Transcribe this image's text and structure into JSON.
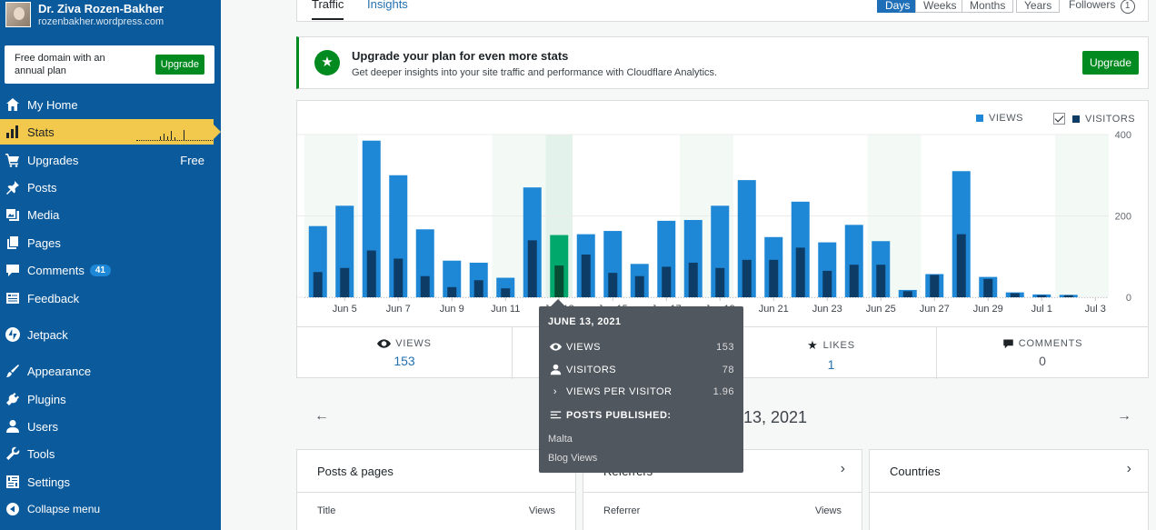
{
  "site": {
    "name": "Dr. Ziva Rozen-Bakher",
    "url": "rozenbakher.wordpress.com"
  },
  "promo": {
    "text": "Free domain with an annual plan",
    "button": "Upgrade"
  },
  "nav": {
    "my_home": "My Home",
    "stats": "Stats",
    "upgrades": "Upgrades",
    "upgrades_badge": "Free",
    "posts": "Posts",
    "media": "Media",
    "pages": "Pages",
    "comments": "Comments",
    "comments_count": "41",
    "feedback": "Feedback",
    "jetpack": "Jetpack",
    "appearance": "Appearance",
    "plugins": "Plugins",
    "users": "Users",
    "tools": "Tools",
    "settings": "Settings",
    "collapse": "Collapse menu"
  },
  "tabs": {
    "traffic": "Traffic",
    "insights": "Insights"
  },
  "periods": {
    "days": "Days",
    "weeks": "Weeks",
    "months": "Months",
    "years": "Years",
    "active": "Days"
  },
  "followers": {
    "label": "Followers",
    "count": "1"
  },
  "banner": {
    "title": "Upgrade your plan for even more stats",
    "desc": "Get deeper insights into your site traffic and performance with Cloudflare Analytics.",
    "button": "Upgrade"
  },
  "legend": {
    "views": "VIEWS",
    "visitors": "VISITORS"
  },
  "colors": {
    "views": "#1e87d6",
    "visitors": "#0d3d66",
    "selected": "#00a86b",
    "selected_dark": "#064d33",
    "sidebar": "#0b5a9c",
    "accent": "#f2c94c"
  },
  "chart_data": {
    "type": "bar",
    "y_ticks": [
      "400",
      "200",
      "0"
    ],
    "ylim": [
      0,
      400
    ],
    "x_labels": [
      "Jun 5",
      "Jun 7",
      "Jun 9",
      "Jun 11",
      "Jun 13",
      "Jun 15",
      "Jun 17",
      "Jun 19",
      "Jun 21",
      "Jun 23",
      "Jun 25",
      "Jun 27",
      "Jun 29",
      "Jul 1",
      "Jul 3"
    ],
    "views": [
      175,
      225,
      385,
      300,
      167,
      90,
      85,
      48,
      270,
      153,
      155,
      163,
      82,
      188,
      190,
      225,
      288,
      148,
      235,
      135,
      178,
      138,
      18,
      57,
      310,
      50,
      12,
      7,
      6,
      0
    ],
    "visitors": [
      62,
      72,
      115,
      95,
      52,
      25,
      42,
      22,
      140,
      78,
      105,
      60,
      52,
      75,
      85,
      72,
      92,
      92,
      122,
      65,
      80,
      80,
      15,
      55,
      155,
      45,
      10,
      5,
      5,
      0
    ],
    "selected_index": 9
  },
  "summary": {
    "views_label": "VIEWS",
    "views_value": "153",
    "likes_label": "LIKES",
    "likes_value": "1",
    "comments_label": "COMMENTS",
    "comments_value": "0"
  },
  "date_label": "13, 2021",
  "tooltip": {
    "date": "JUNE 13, 2021",
    "views_label": "VIEWS",
    "views_value": "153",
    "visitors_label": "VISITORS",
    "visitors_value": "78",
    "vpv_label": "VIEWS PER VISITOR",
    "vpv_value": "1.96",
    "posts_label": "POSTS PUBLISHED:",
    "posts": [
      "Malta",
      "Blog Views"
    ]
  },
  "cards": {
    "posts": {
      "title": "Posts & pages",
      "col1": "Title",
      "col2": "Views"
    },
    "referrers": {
      "title": "Referrers",
      "col1": "Referrer",
      "col2": "Views"
    },
    "countries": {
      "title": "Countries"
    }
  }
}
